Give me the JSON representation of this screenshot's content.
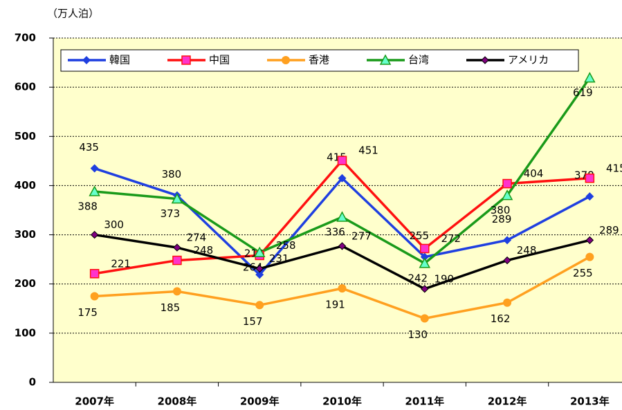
{
  "chart_data": {
    "type": "line",
    "y_axis_label": "（万人泊）",
    "categories": [
      "2007年",
      "2008年",
      "2009年",
      "2010年",
      "2011年",
      "2012年",
      "2013年"
    ],
    "series": [
      {
        "name": "韓国",
        "color": "#1f3fe0",
        "marker": "diamond",
        "values": [
          435,
          380,
          219,
          415,
          255,
          289,
          378
        ]
      },
      {
        "name": "中国",
        "color": "#ff1010",
        "marker": "square",
        "values": [
          221,
          248,
          258,
          451,
          272,
          404,
          415
        ]
      },
      {
        "name": "香港",
        "color": "#ffa020",
        "marker": "circle",
        "values": [
          175,
          185,
          157,
          191,
          130,
          162,
          255
        ]
      },
      {
        "name": "台湾",
        "color": "#1a9a1a",
        "marker": "triangle",
        "values": [
          388,
          373,
          264,
          336,
          242,
          380,
          619
        ]
      },
      {
        "name": "アメリカ",
        "color": "#000000",
        "marker": "dot",
        "values": [
          300,
          274,
          231,
          277,
          190,
          248,
          289
        ]
      }
    ],
    "ylim": [
      0,
      700
    ],
    "yticks": [
      0,
      100,
      200,
      300,
      400,
      500,
      600,
      700
    ],
    "grid": true,
    "legend": "top"
  }
}
